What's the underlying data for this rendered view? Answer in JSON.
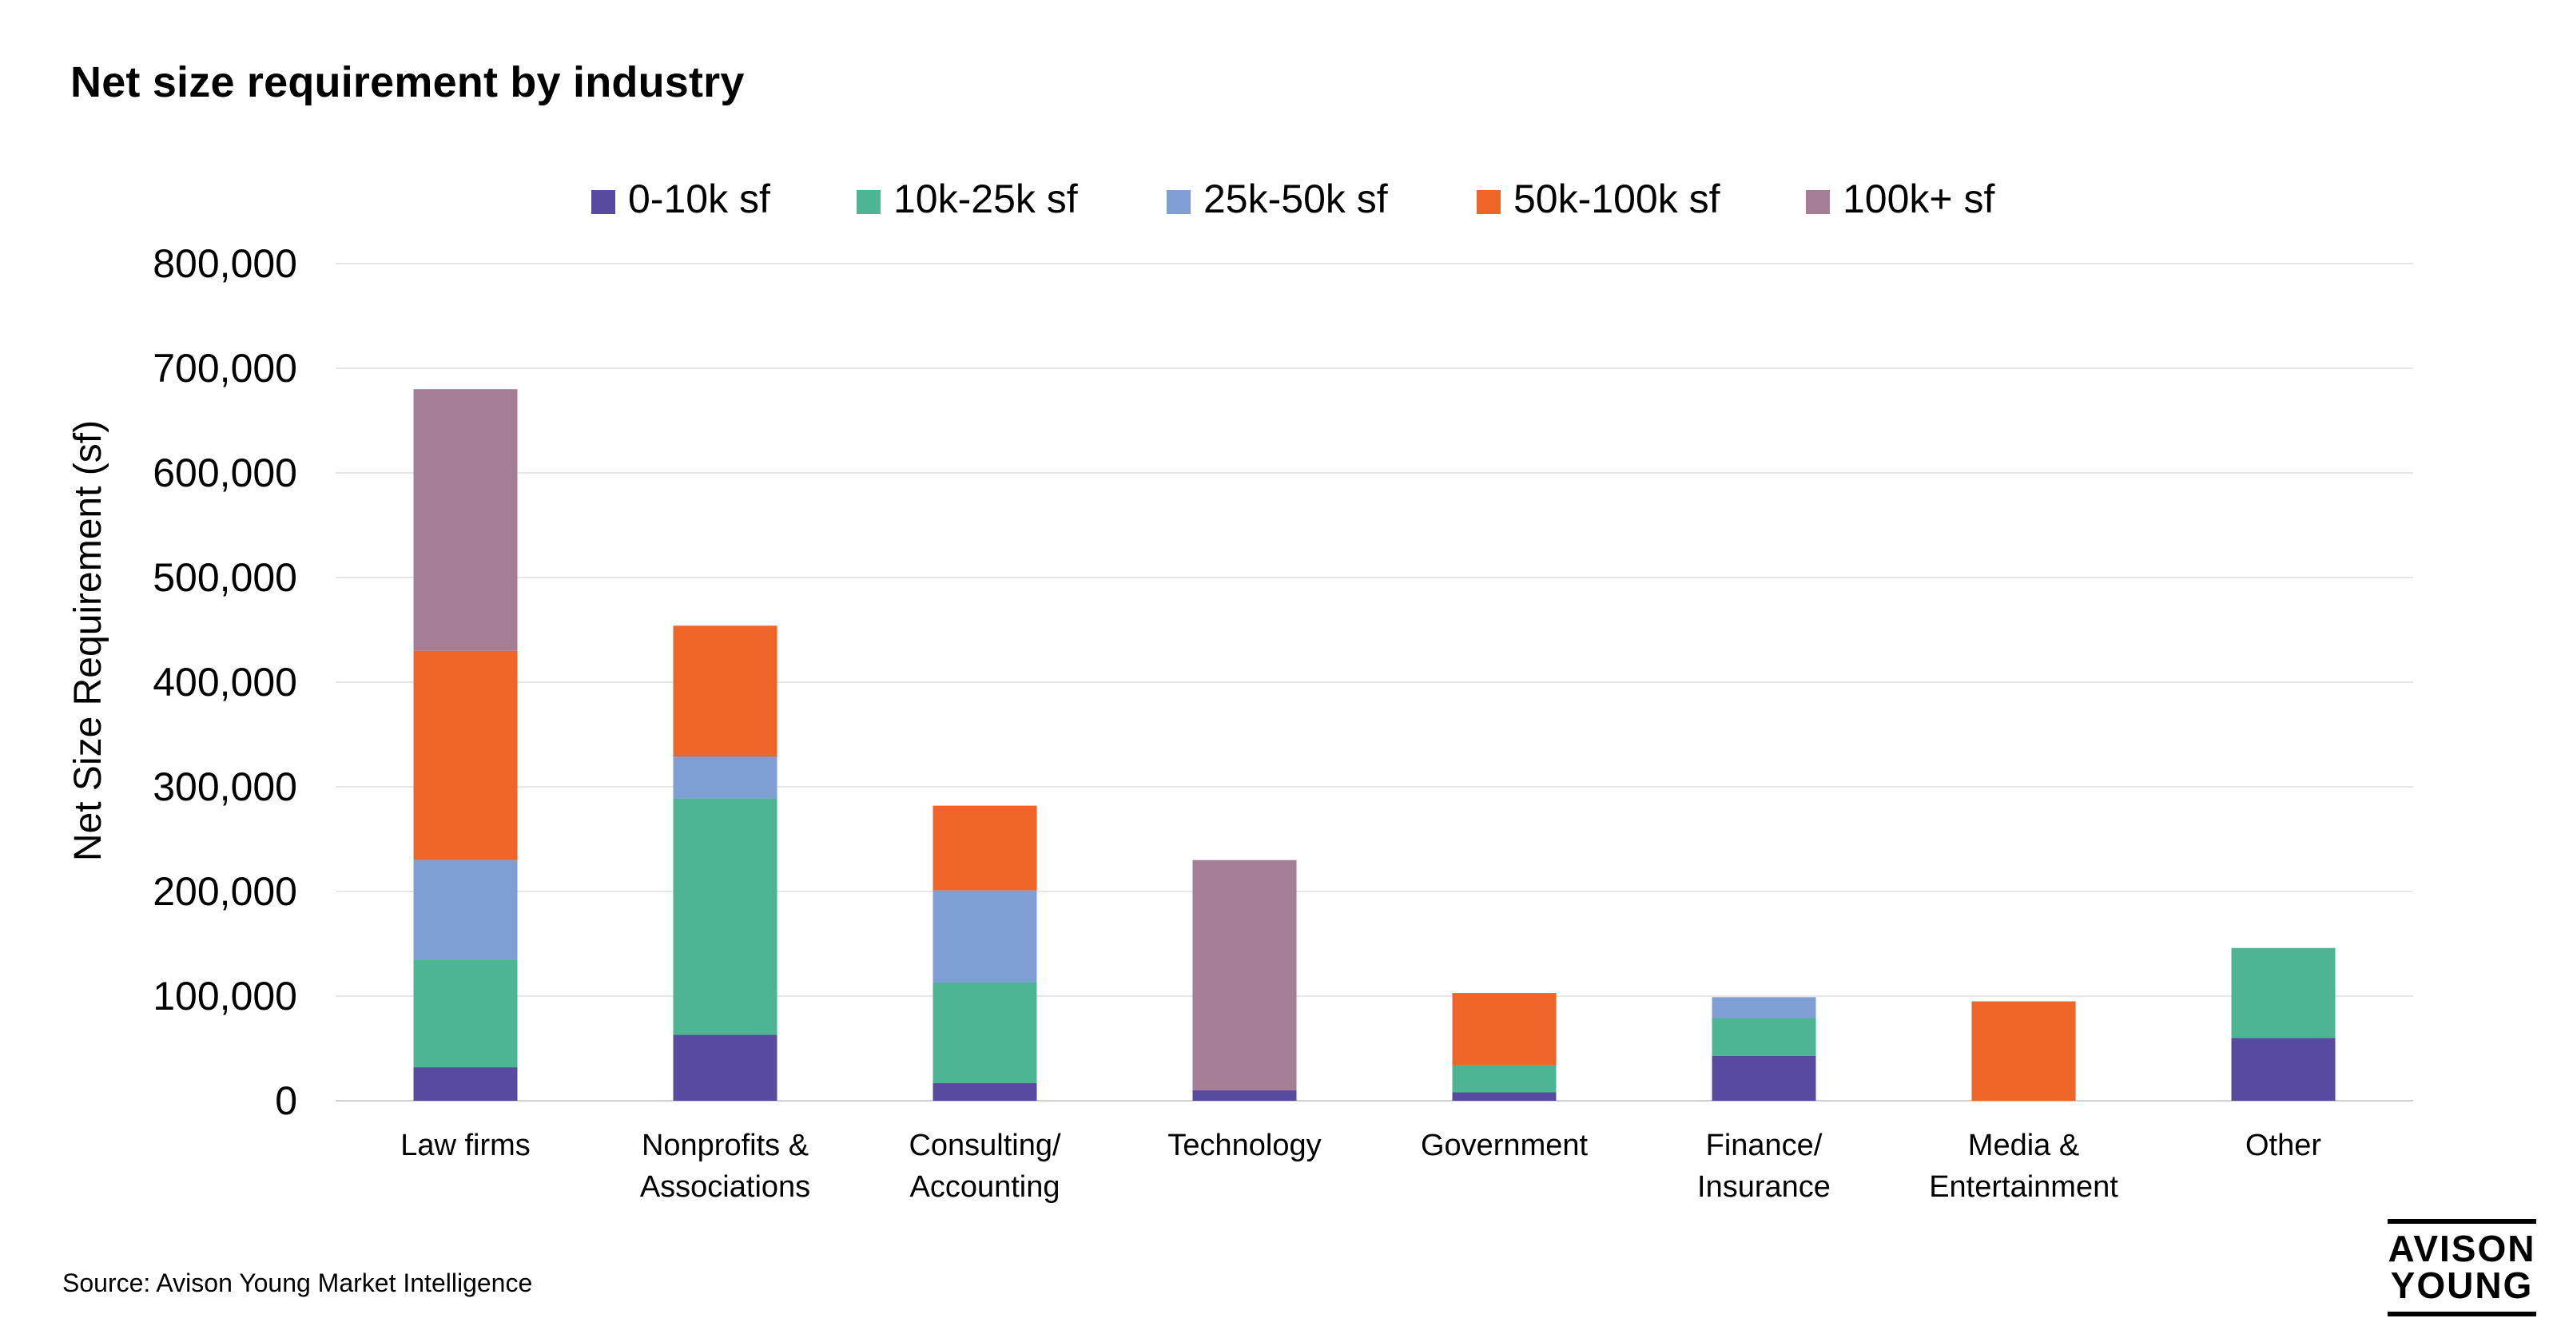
{
  "title": "Net size requirement by industry",
  "source": "Source: Avison Young Market Intelligence",
  "logo": {
    "line1": "AVISON",
    "line2": "YOUNG"
  },
  "chart_data": {
    "type": "bar",
    "stacked": true,
    "title": "Net size requirement by industry",
    "xlabel": "",
    "ylabel": "Net Size Requirement (sf)",
    "ylim": [
      0,
      800000
    ],
    "yticks": [
      0,
      100000,
      200000,
      300000,
      400000,
      500000,
      600000,
      700000,
      800000
    ],
    "ytick_labels": [
      "0",
      "100,000",
      "200,000",
      "300,000",
      "400,000",
      "500,000",
      "600,000",
      "700,000",
      "800,000"
    ],
    "grid": true,
    "legend_position": "top",
    "categories": [
      [
        "Law firms"
      ],
      [
        "Nonprofits &",
        "Associations"
      ],
      [
        "Consulting/",
        "Accounting"
      ],
      [
        "Technology"
      ],
      [
        "Government"
      ],
      [
        "Finance/",
        "Insurance"
      ],
      [
        "Media &",
        "Entertainment"
      ],
      [
        "Other"
      ]
    ],
    "series": [
      {
        "name": "0-10k sf",
        "color": "#584a9e",
        "values": [
          32000,
          63000,
          17000,
          10000,
          8000,
          43000,
          0,
          60000
        ]
      },
      {
        "name": "10k-25k sf",
        "color": "#4db594",
        "values": [
          103000,
          226000,
          96000,
          0,
          26000,
          36000,
          0,
          86000
        ]
      },
      {
        "name": "25k-50k sf",
        "color": "#7f9ed3",
        "values": [
          95000,
          40000,
          88000,
          0,
          0,
          20000,
          0,
          0
        ]
      },
      {
        "name": "50k-100k sf",
        "color": "#ef6429",
        "values": [
          200000,
          125000,
          81000,
          0,
          69000,
          0,
          95000,
          0
        ]
      },
      {
        "name": "100k+ sf",
        "color": "#a57e96",
        "values": [
          250000,
          0,
          0,
          220000,
          0,
          0,
          0,
          0
        ]
      }
    ]
  }
}
